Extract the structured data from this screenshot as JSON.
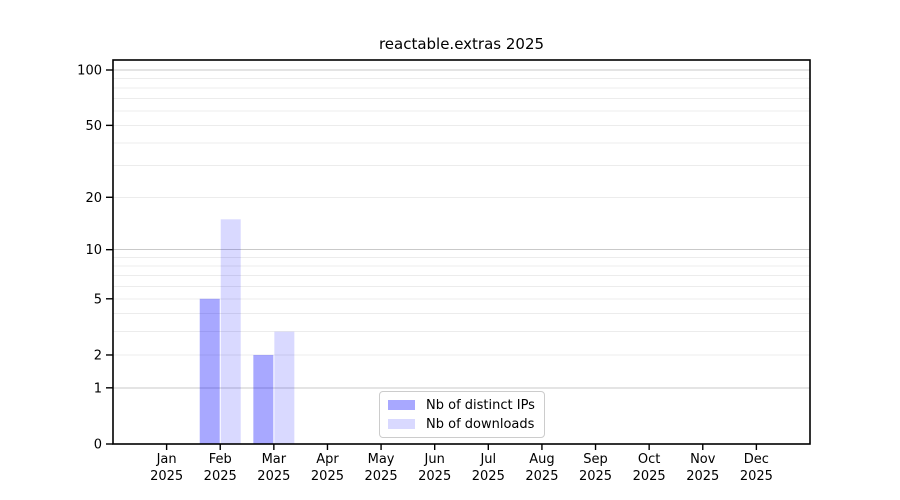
{
  "chart_data": {
    "type": "bar",
    "title": "reactable.extras 2025",
    "xlabel": "",
    "ylabel": "",
    "y_scale": "log1p",
    "ylim": [
      0,
      113
    ],
    "grid": true,
    "categories": [
      "Jan 2025",
      "Feb 2025",
      "Mar 2025",
      "Apr 2025",
      "May 2025",
      "Jun 2025",
      "Jul 2025",
      "Aug 2025",
      "Sep 2025",
      "Oct 2025",
      "Nov 2025",
      "Dec 2025"
    ],
    "x_tick_labels": [
      [
        "Jan",
        "2025"
      ],
      [
        "Feb",
        "2025"
      ],
      [
        "Mar",
        "2025"
      ],
      [
        "Apr",
        "2025"
      ],
      [
        "May",
        "2025"
      ],
      [
        "Jun",
        "2025"
      ],
      [
        "Jul",
        "2025"
      ],
      [
        "Aug",
        "2025"
      ],
      [
        "Sep",
        "2025"
      ],
      [
        "Oct",
        "2025"
      ],
      [
        "Nov",
        "2025"
      ],
      [
        "Dec",
        "2025"
      ]
    ],
    "y_ticks": [
      {
        "value": 0,
        "label": "0"
      },
      {
        "value": 1,
        "label": "1"
      },
      {
        "value": 2,
        "label": "2"
      },
      {
        "value": 5,
        "label": "5"
      },
      {
        "value": 10,
        "label": "10"
      },
      {
        "value": 20,
        "label": "20"
      },
      {
        "value": 50,
        "label": "50"
      },
      {
        "value": 100,
        "label": "100"
      }
    ],
    "y_major_gridlines": [
      1,
      10,
      100
    ],
    "y_minor_gridlines": [
      2,
      3,
      4,
      5,
      6,
      7,
      8,
      9,
      20,
      30,
      40,
      50,
      60,
      70,
      80,
      90
    ],
    "series": [
      {
        "name": "Nb of distinct IPs",
        "color": "rgba(0,0,255,0.34)",
        "flat_color": "#a8a8fa",
        "values": [
          0,
          5,
          2,
          0,
          0,
          0,
          0,
          0,
          0,
          0,
          0,
          0
        ]
      },
      {
        "name": "Nb of downloads",
        "color": "rgba(0,0,255,0.15)",
        "flat_color": "#d9d9fa",
        "values": [
          0,
          15,
          3,
          0,
          0,
          0,
          0,
          0,
          0,
          0,
          0,
          0
        ]
      }
    ],
    "legend": {
      "position": "lower center"
    }
  },
  "colors": {
    "background": "#ffffff",
    "axis": "#000000",
    "text": "#000000",
    "grid_major": "#c9c9c9",
    "grid_minor": "#ececec",
    "legend_border": "#cccccc"
  }
}
